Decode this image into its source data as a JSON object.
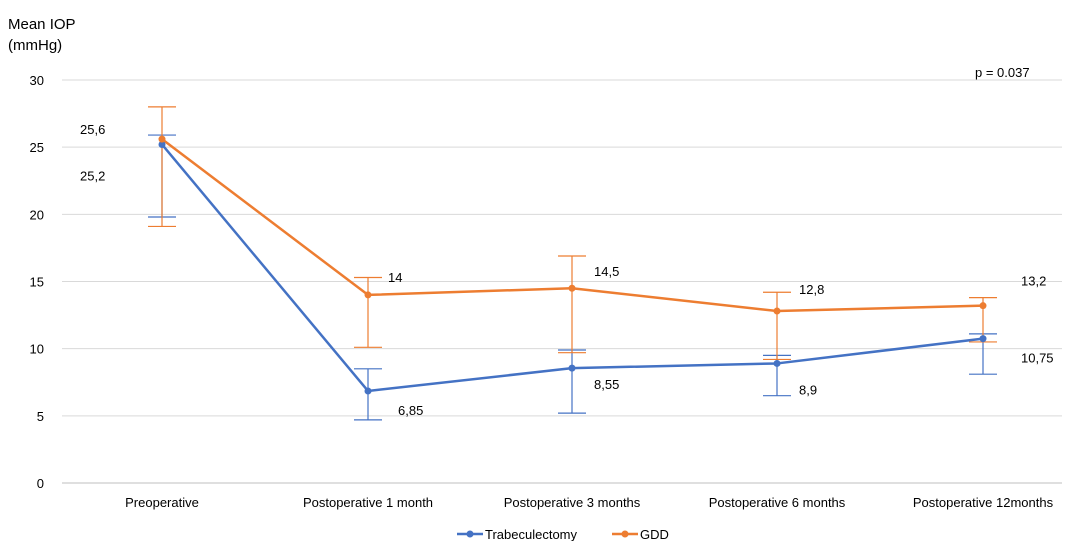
{
  "chart_data": {
    "type": "line",
    "ylabel_line1": "Mean IOP",
    "ylabel_line2": "(mmHg)",
    "annotation": "p = 0.037",
    "categories": [
      "Preoperative",
      "Postoperative 1 month",
      "Postoperative 3 months",
      "Postoperative 6 months",
      "Postoperative 12months"
    ],
    "ylim": [
      0,
      30
    ],
    "yticks": [
      "0",
      "5",
      "10",
      "15",
      "20",
      "25",
      "30"
    ],
    "grid": true,
    "legend_position": "bottom",
    "series": [
      {
        "name": "Trabeculectomy",
        "color": "#4472C4",
        "values": [
          25.2,
          6.85,
          8.55,
          8.9,
          10.75
        ],
        "value_labels": [
          "25,2",
          "6,85",
          "8,55",
          "8,9",
          "10,75"
        ],
        "error_low": [
          19.8,
          4.7,
          5.2,
          6.5,
          8.1
        ],
        "error_high": [
          25.9,
          8.5,
          9.9,
          9.5,
          11.1
        ]
      },
      {
        "name": "GDD",
        "color": "#ED7D31",
        "values": [
          25.6,
          14,
          14.5,
          12.8,
          13.2
        ],
        "value_labels": [
          "25,6",
          "14",
          "14,5",
          "12,8",
          "13,2"
        ],
        "error_low": [
          19.1,
          10.1,
          9.7,
          9.2,
          10.5
        ],
        "error_high": [
          28.0,
          15.3,
          16.9,
          14.2,
          13.8
        ]
      }
    ]
  }
}
